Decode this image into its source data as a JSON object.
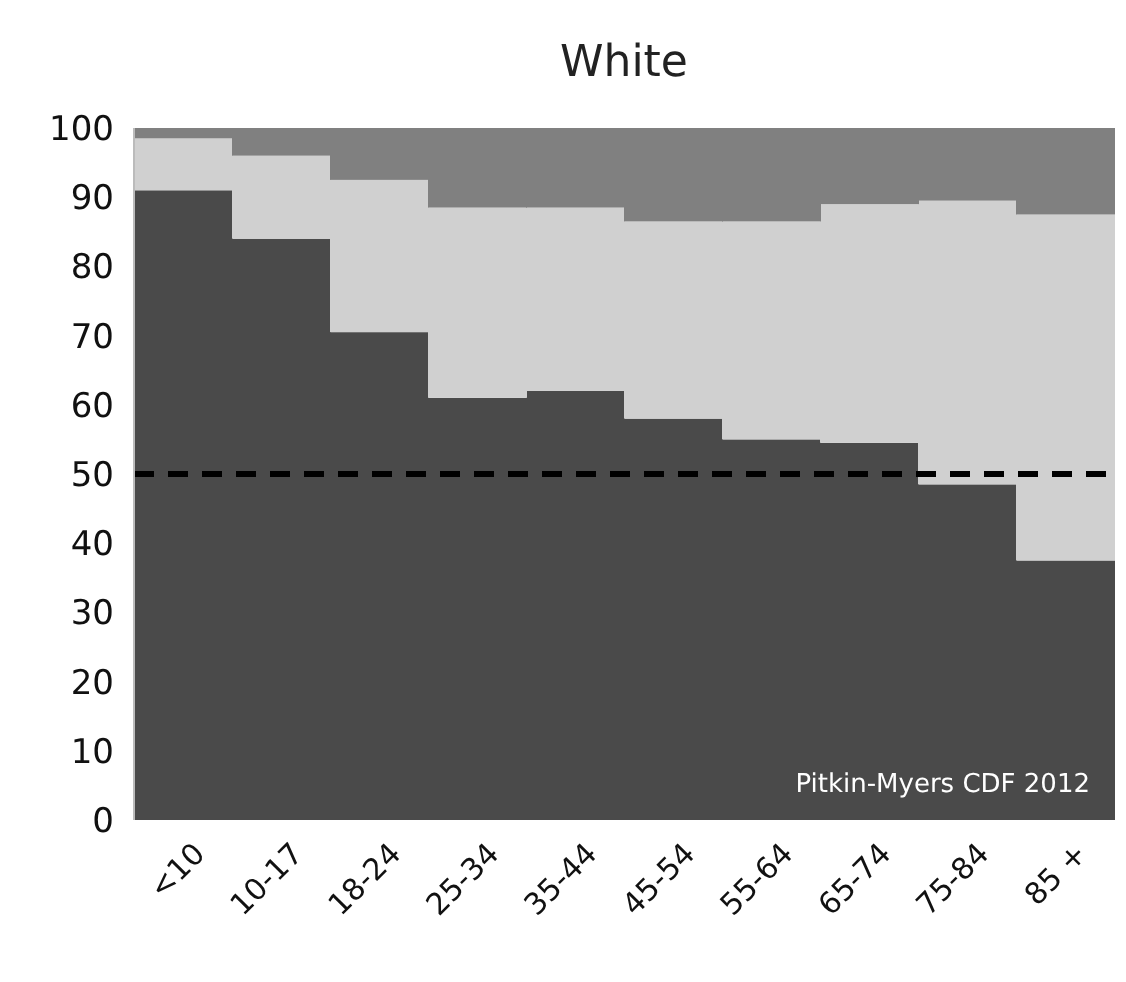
{
  "chart_data": {
    "type": "bar",
    "title": "White",
    "stacked": true,
    "categories": [
      "<10",
      "10-17",
      "18-24",
      "25-34",
      "35-44",
      "45-54",
      "55-64",
      "65-74",
      "75-84",
      "85 +"
    ],
    "series": [
      {
        "color": "#4a4a4a",
        "values": [
          91,
          84,
          70.5,
          61,
          62,
          58,
          55,
          54.5,
          48.5,
          37.5
        ]
      },
      {
        "color": "#d0d0d0",
        "values": [
          7.5,
          12,
          22,
          27.5,
          26.5,
          28.5,
          31.5,
          34.5,
          41,
          50
        ]
      },
      {
        "color": "#808080",
        "values": [
          1.5,
          4,
          7.5,
          11.5,
          11.5,
          13.5,
          13.5,
          11,
          10.5,
          12.5
        ]
      }
    ],
    "ylim": [
      0,
      100
    ],
    "yticks": [
      0,
      10,
      20,
      30,
      40,
      50,
      60,
      70,
      80,
      90,
      100
    ],
    "grid": false,
    "ref_lines": [
      {
        "axis": "y",
        "value": 50,
        "color": "#000000",
        "line_style": "dashed"
      }
    ],
    "annotations": [
      "Pitkin-Myers CDF 2012"
    ]
  }
}
